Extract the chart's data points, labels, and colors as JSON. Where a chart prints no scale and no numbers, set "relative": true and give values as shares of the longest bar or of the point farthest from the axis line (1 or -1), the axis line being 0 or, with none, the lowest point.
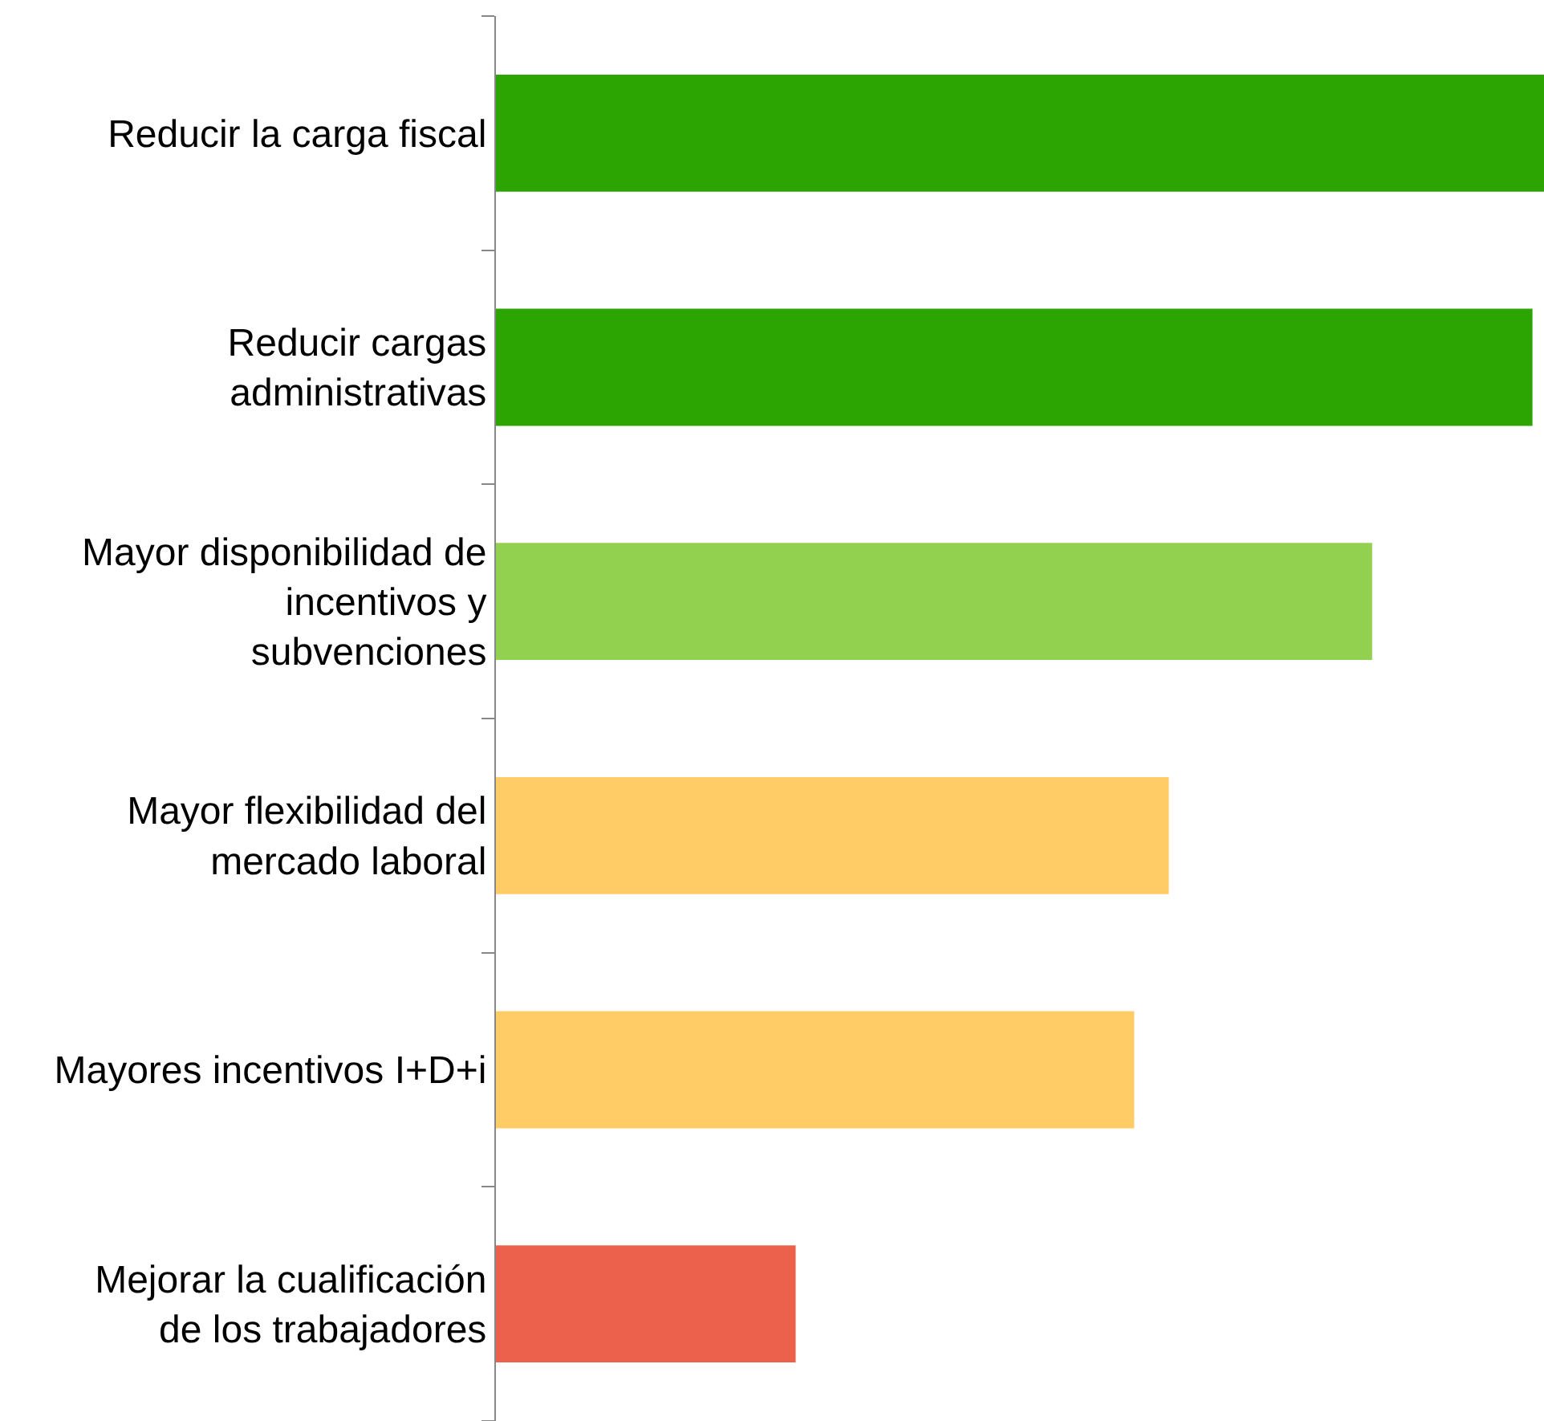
{
  "chart_data": {
    "type": "bar",
    "orientation": "horizontal",
    "relative": true,
    "categories": [
      "Reducir la carga fiscal",
      "Reducir cargas administrativas",
      "Mayor disponibilidad de incentivos y subvenciones",
      "Mayor flexibilidad del mercado laboral",
      "Mayores incentivos I+D+i",
      "Mejorar la cualificación de los trabajadores"
    ],
    "values": [
      1,
      0.989,
      0.836,
      0.642,
      0.609,
      0.286
    ],
    "colors": [
      "#2ca502",
      "#2ca502",
      "#92d050",
      "#ffcc66",
      "#ffcc66",
      "#ec614b"
    ],
    "legend": false
  }
}
